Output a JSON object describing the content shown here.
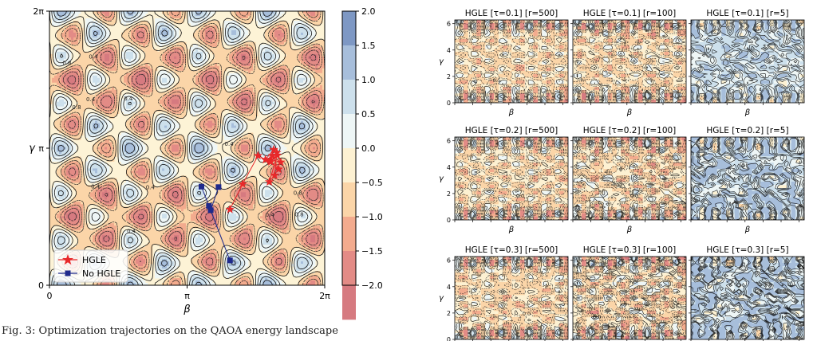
{
  "main_plot": {
    "type": "contour",
    "xlabel": "β",
    "ylabel": "γ",
    "x_ticks": [
      "0",
      "π",
      "2π"
    ],
    "y_ticks": [
      "0",
      "π",
      "2π"
    ],
    "xlim": [
      0,
      6.2832
    ],
    "ylim": [
      0,
      6.2832
    ],
    "colormap": "RdYlBu (reversed)",
    "contour_level_labels": [
      "0.4",
      "0.4",
      "0.4",
      "0.4",
      "0.4",
      "0.4",
      "0.4",
      "0.4",
      "0.8",
      "0.8",
      "0.8",
      "0.8"
    ],
    "legend": {
      "position": "bottom-left",
      "entries": [
        "HGLE",
        "No HGLE"
      ]
    },
    "colorbar": {
      "ticks": [
        "2.0",
        "1.5",
        "1.0",
        "0.5",
        "0.0",
        "−0.5",
        "−1.0",
        "−1.5",
        "−2.0"
      ],
      "colors": [
        "#7e98c4",
        "#a7bedb",
        "#cde0ec",
        "#eef6f6",
        "#fdf1d2",
        "#fbd5a8",
        "#f3ab8e",
        "#e38b86",
        "#d67a80"
      ]
    }
  },
  "chart_data": [
    {
      "type": "line",
      "title": "",
      "xlabel": "β",
      "ylabel": "γ",
      "xlim": [
        0,
        6.2832
      ],
      "ylim": [
        0,
        6.2832
      ],
      "series": [
        {
          "name": "HGLE",
          "color": "#e8282a",
          "marker": "star",
          "x": [
            4.12,
            4.41,
            4.76,
            4.93,
            5.12,
            5.05,
            5.23,
            5.09,
            5.28,
            5.19,
            5.14,
            5.02,
            5.2,
            5.03
          ],
          "y": [
            1.74,
            2.32,
            2.97,
            2.88,
            3.11,
            2.83,
            2.66,
            2.97,
            2.82,
            3.04,
            2.52,
            2.37,
            2.98,
            2.86
          ]
        },
        {
          "name": "No HGLE",
          "color": "#1f2a8c",
          "marker": "square",
          "x": [
            3.86,
            3.68,
            4.12,
            3.64,
            3.47
          ],
          "y": [
            2.25,
            1.72,
            0.57,
            1.82,
            2.26
          ]
        }
      ]
    }
  ],
  "small_multiples": {
    "xlabel": "β",
    "ylabel": "γ",
    "y_ticks": [
      "0",
      "2",
      "4",
      "6"
    ],
    "rows": [
      [
        "HGLE [τ=0.1] [r=500]",
        "HGLE [τ=0.1] [r=100]",
        "HGLE [τ=0.1] [r=5]"
      ],
      [
        "HGLE [τ=0.2] [r=500]",
        "HGLE [τ=0.2] [r=100]",
        "HGLE [τ=0.2] [r=5]"
      ],
      [
        "HGLE [τ=0.3] [r=500]",
        "HGLE [τ=0.3] [r=100]",
        "HGLE [τ=0.3] [r=5]"
      ]
    ],
    "inline_labels": [
      "−0.5",
      "0.5",
      "0.0",
      "0.0",
      "0.0",
      "0.0"
    ]
  },
  "caption": "Fig. 3: Optimization trajectories on the QAOA energy landscape"
}
